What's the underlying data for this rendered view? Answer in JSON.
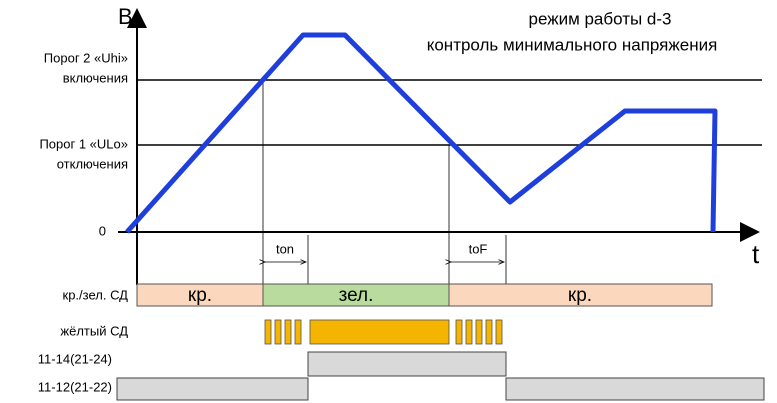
{
  "axes": {
    "y_label": "В",
    "x_label": "t",
    "zero": "0"
  },
  "title": {
    "line1": "режим работы d-3",
    "line2": "контроль минимального напряжения"
  },
  "thresholds": [
    {
      "name": "Порог 2 «Uhi»",
      "caption": "включения"
    },
    {
      "name": "Порог 1 «ULo»",
      "caption": "отключения"
    }
  ],
  "delays": {
    "on": "ton",
    "off": "toF"
  },
  "rows": [
    {
      "label": "кр./зел. СД",
      "segments": [
        "кр.",
        "зел.",
        "кр."
      ]
    },
    {
      "label": "жёлтый СД"
    },
    {
      "label": "11-14(21-24)"
    },
    {
      "label": "11-12(21-22)"
    }
  ]
}
